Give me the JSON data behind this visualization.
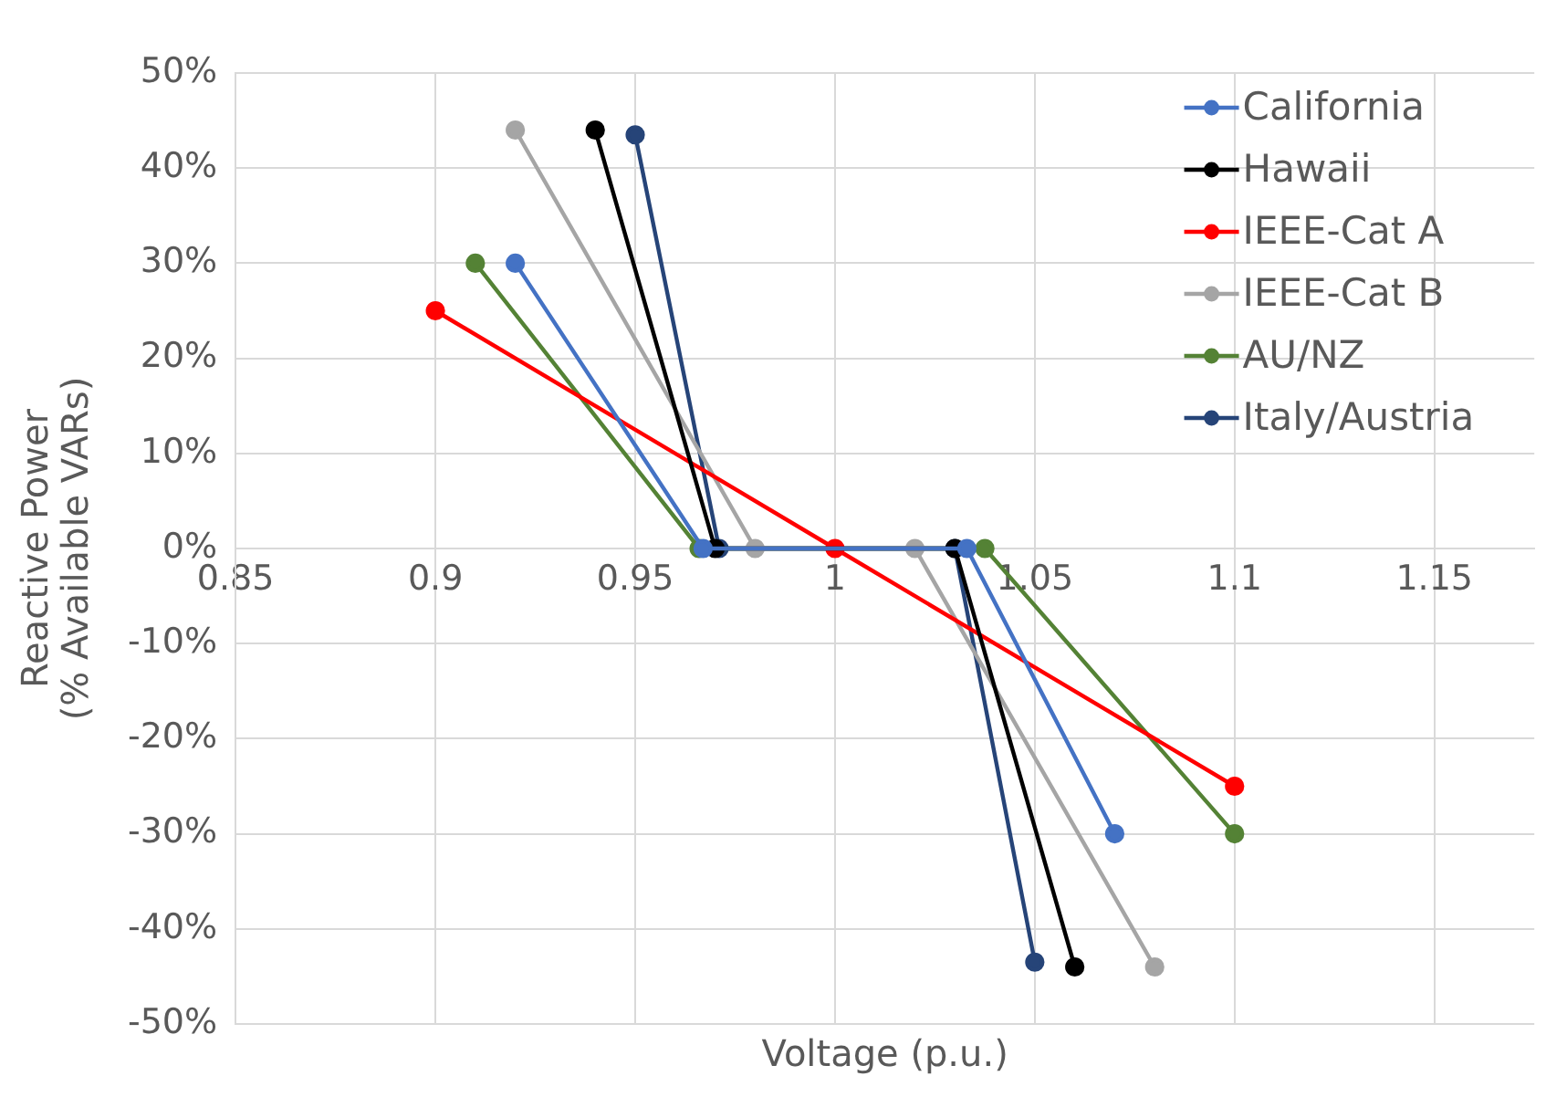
{
  "chart_data": {
    "type": "line",
    "xlabel": "Voltage (p.u.)",
    "ylabel": "Reactive Power\n(% Available VARs)",
    "xlim": [
      0.85,
      1.175
    ],
    "xticks": [
      0.85,
      0.9,
      0.95,
      1,
      1.05,
      1.1,
      1.15
    ],
    "ylim": [
      -50,
      50
    ],
    "yticks": [
      {
        "value": -50,
        "label": "-50%"
      },
      {
        "value": -40,
        "label": "-40%"
      },
      {
        "value": -30,
        "label": "-30%"
      },
      {
        "value": -20,
        "label": "-20%"
      },
      {
        "value": -10,
        "label": "-10%"
      },
      {
        "value": 0,
        "label": "0%"
      },
      {
        "value": 10,
        "label": "10%"
      },
      {
        "value": 20,
        "label": "20%"
      },
      {
        "value": 30,
        "label": "30%"
      },
      {
        "value": 40,
        "label": "40%"
      },
      {
        "value": 50,
        "label": "50%"
      }
    ],
    "grid": true,
    "legend": "top right",
    "marker": "circle",
    "line_style": "solid",
    "series": [
      {
        "name": "California",
        "color": "#4472c4",
        "x": [
          0.92,
          0.967,
          1.033,
          1.07
        ],
        "values": [
          30,
          0,
          0,
          -30
        ]
      },
      {
        "name": "Hawaii",
        "color": "#000000",
        "x": [
          0.94,
          0.97,
          1.03,
          1.06
        ],
        "values": [
          44,
          0,
          0,
          -44
        ]
      },
      {
        "name": "IEEE-Cat A",
        "color": "#ff0000",
        "x": [
          0.9,
          1,
          1.1
        ],
        "values": [
          25,
          0,
          -25
        ]
      },
      {
        "name": "IEEE-Cat B",
        "color": "#a5a5a5",
        "x": [
          0.92,
          0.98,
          1.02,
          1.08
        ],
        "values": [
          44,
          0,
          0,
          -44
        ]
      },
      {
        "name": "AU/NZ",
        "color": "#548235",
        "x": [
          0.91,
          0.966,
          1.0375,
          1.1
        ],
        "values": [
          30,
          0,
          0,
          -30
        ]
      },
      {
        "name": "Italy/Austria",
        "color": "#264478",
        "x": [
          0.95,
          0.971,
          1.03,
          1.05
        ],
        "values": [
          43.5,
          0,
          0,
          -43.5
        ]
      }
    ]
  }
}
